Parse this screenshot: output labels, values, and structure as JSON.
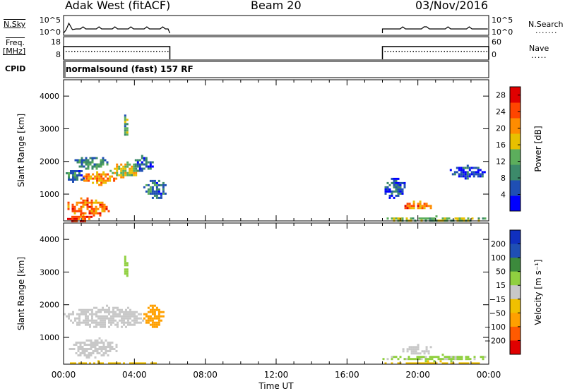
{
  "header": {
    "title": "Adak West (fitACF)",
    "beam": "Beam 20",
    "date": "03/Nov/2016"
  },
  "strips": {
    "nsky_label": "N.Sky",
    "nsearch_label": "N.Search",
    "freq_label": "Freq.",
    "freq_unit": "[MHz]",
    "nave_label": "Nave",
    "cpid_label": "CPID",
    "cpid_text": "normalsound (fast) 157 RF",
    "noise_ticks": [
      "10^5",
      "10^0"
    ],
    "freq_ticks": [
      "18",
      "8"
    ],
    "nave_ticks": [
      "60",
      "0"
    ]
  },
  "colors": {
    "power": [
      "#0000ff",
      "#1f4fb4",
      "#3c8a6a",
      "#5cae5c",
      "#e8c000",
      "#ff8c00",
      "#ff4500",
      "#e00000"
    ],
    "velocity": [
      "#e00000",
      "#ff5a00",
      "#ffa000",
      "#f0c000",
      "#c8c8c8",
      "#90d040",
      "#3c8a3c",
      "#1f4fb4",
      "#1030c0"
    ],
    "ground_scatter": "#c8c8c8"
  },
  "chart_data": [
    {
      "type": "heatmap",
      "name": "power",
      "ylabel": "Slant Range [km]",
      "xlabel": "",
      "x_ticks": [
        "00:00",
        "04:00",
        "08:00",
        "12:00",
        "16:00",
        "20:00",
        "00:00"
      ],
      "x_range_hours": [
        0,
        24
      ],
      "y_ticks": [
        1000,
        2000,
        3000,
        4000
      ],
      "y_range_km": [
        180,
        4500
      ],
      "colorbar_label": "Power [dB]",
      "colorbar_ticks": [
        4,
        8,
        12,
        16,
        20,
        24,
        28
      ],
      "colorbar_range": [
        0,
        30
      ],
      "data_gap_hours": [
        6,
        18
      ],
      "scatter_regions": [
        {
          "t": [
            0.0,
            1.2
          ],
          "r": [
            1400,
            1800
          ],
          "value": 8
        },
        {
          "t": [
            1.0,
            3.0
          ],
          "r": [
            1300,
            1700
          ],
          "value": 20
        },
        {
          "t": [
            2.6,
            4.3
          ],
          "r": [
            1500,
            2000
          ],
          "value": 16
        },
        {
          "t": [
            3.9,
            5.0
          ],
          "r": [
            1700,
            2200
          ],
          "value": 6
        },
        {
          "t": [
            0.1,
            2.6
          ],
          "r": [
            350,
            900
          ],
          "value": 22
        },
        {
          "t": [
            0.2,
            1.6
          ],
          "r": [
            180,
            400
          ],
          "value": 26
        },
        {
          "t": [
            0.5,
            2.5
          ],
          "r": [
            1800,
            2200
          ],
          "value": 10
        },
        {
          "t": [
            4.5,
            5.8
          ],
          "r": [
            900,
            1500
          ],
          "value": 8
        },
        {
          "t": [
            3.3,
            3.6
          ],
          "r": [
            2800,
            3500
          ],
          "value": 12
        },
        {
          "t": [
            18.0,
            19.3
          ],
          "r": [
            900,
            1500
          ],
          "value": 6
        },
        {
          "t": [
            19.0,
            20.8
          ],
          "r": [
            550,
            800
          ],
          "value": 22
        },
        {
          "t": [
            18.0,
            23.8
          ],
          "r": [
            180,
            350
          ],
          "value": 14
        },
        {
          "t": [
            21.8,
            23.8
          ],
          "r": [
            1500,
            1900
          ],
          "value": 4
        }
      ]
    },
    {
      "type": "heatmap",
      "name": "velocity",
      "ylabel": "Slant Range [km]",
      "xlabel": "Time UT",
      "x_ticks": [
        "00:00",
        "04:00",
        "08:00",
        "12:00",
        "16:00",
        "20:00",
        "00:00"
      ],
      "x_range_hours": [
        0,
        24
      ],
      "y_ticks": [
        1000,
        2000,
        3000,
        4000
      ],
      "y_range_km": [
        180,
        4500
      ],
      "colorbar_label": "Velocity [m s⁻¹]",
      "colorbar_ticks": [
        "200",
        "100",
        "50",
        "15",
        "−15",
        "−50",
        "−100",
        "−200"
      ],
      "data_gap_hours": [
        6,
        18
      ],
      "scatter_regions": [
        {
          "t": [
            0.0,
            4.5
          ],
          "r": [
            1300,
            2000
          ],
          "value": 0
        },
        {
          "t": [
            0.3,
            3.0
          ],
          "r": [
            400,
            1000
          ],
          "value": 0
        },
        {
          "t": [
            0.0,
            5.5
          ],
          "r": [
            180,
            300
          ],
          "value": -30
        },
        {
          "t": [
            4.5,
            5.6
          ],
          "r": [
            1300,
            2000
          ],
          "value": -80
        },
        {
          "t": [
            3.3,
            3.6
          ],
          "r": [
            2800,
            3500
          ],
          "value": 40
        },
        {
          "t": [
            19.0,
            20.8
          ],
          "r": [
            500,
            800
          ],
          "value": 0
        },
        {
          "t": [
            18.0,
            23.8
          ],
          "r": [
            180,
            300
          ],
          "value": -30
        },
        {
          "t": [
            18.0,
            23.8
          ],
          "r": [
            300,
            500
          ],
          "value": 20
        }
      ]
    }
  ]
}
